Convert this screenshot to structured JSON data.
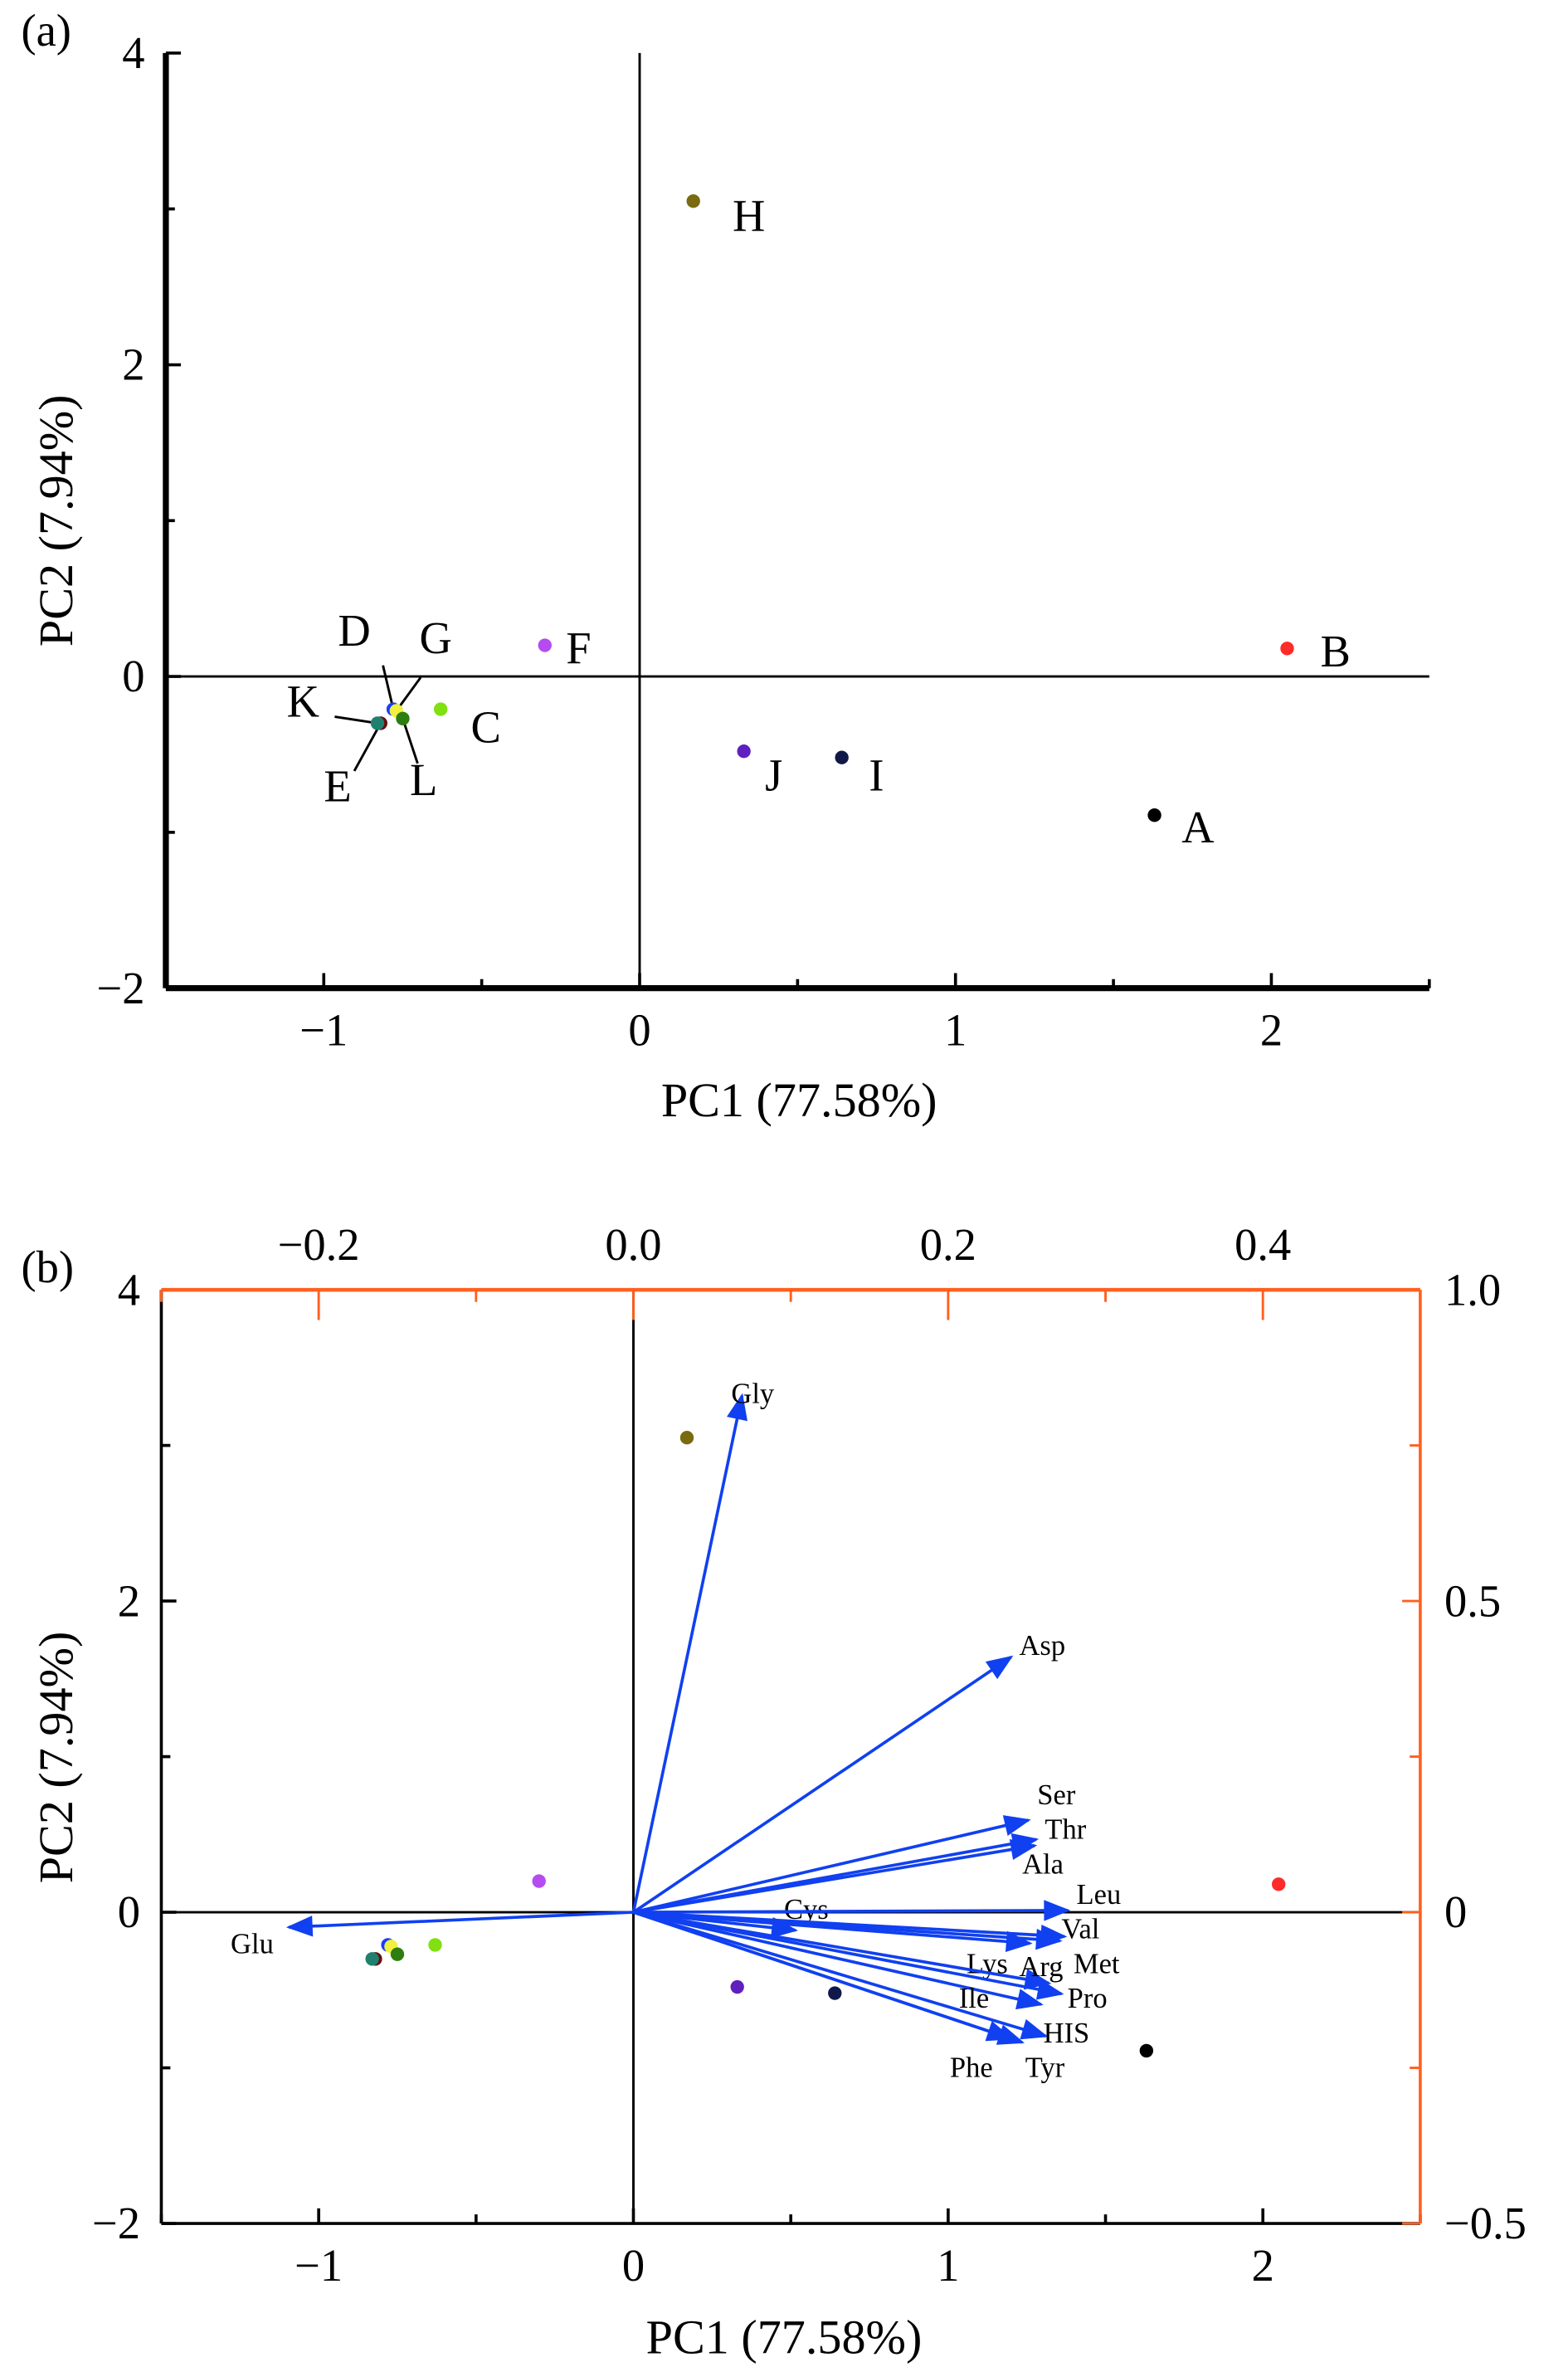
{
  "chart_data": [
    {
      "type": "scatter",
      "panel_label": "(a)",
      "xlabel": "PC1 (77.58%)",
      "ylabel": "PC2 (7.94%)",
      "xlim": [
        -1.5,
        2.5
      ],
      "ylim": [
        -2,
        4
      ],
      "xticks": [
        "-1",
        "0",
        "1",
        "2"
      ],
      "xtick_values": [
        -1,
        0,
        1,
        2
      ],
      "yticks": [
        "-2",
        "0",
        "2",
        "4"
      ],
      "ytick_values": [
        -2,
        0,
        2,
        4
      ],
      "grid": false,
      "points": [
        {
          "label": "A",
          "x": 1.63,
          "y": -0.89,
          "color": "#000000"
        },
        {
          "label": "B",
          "x": 2.05,
          "y": 0.18,
          "color": "#ff2a2a"
        },
        {
          "label": "C",
          "x": -0.63,
          "y": -0.21,
          "color": "#80e010"
        },
        {
          "label": "D",
          "x": -0.78,
          "y": -0.21,
          "color": "#1a3cff"
        },
        {
          "label": "E",
          "x": -0.82,
          "y": -0.3,
          "color": "#6b0d0d"
        },
        {
          "label": "F",
          "x": -0.3,
          "y": 0.2,
          "color": "#b44cf0"
        },
        {
          "label": "G",
          "x": -0.77,
          "y": -0.22,
          "color": "#f0f040"
        },
        {
          "label": "H",
          "x": 0.17,
          "y": 3.05,
          "color": "#7a6a10"
        },
        {
          "label": "I",
          "x": 0.64,
          "y": -0.52,
          "color": "#10184a"
        },
        {
          "label": "J",
          "x": 0.33,
          "y": -0.48,
          "color": "#6020c0"
        },
        {
          "label": "K",
          "x": -0.83,
          "y": -0.3,
          "color": "#208070"
        },
        {
          "label": "L",
          "x": -0.75,
          "y": -0.27,
          "color": "#2e7d10"
        }
      ]
    },
    {
      "type": "biplot",
      "panel_label": "(b)",
      "xlabel": "PC1 (77.58%)",
      "ylabel": "PC2 (7.94%)",
      "xlim": [
        -1.5,
        2.5
      ],
      "ylim": [
        -2,
        4
      ],
      "xticks": [
        "-1",
        "0",
        "1",
        "2"
      ],
      "xtick_values": [
        -1,
        0,
        1,
        2
      ],
      "yticks": [
        "-2",
        "0",
        "2",
        "4"
      ],
      "ytick_values": [
        -2,
        0,
        2,
        4
      ],
      "top_xlim": [
        -0.3,
        0.5
      ],
      "top_xticks": [
        "-0.2",
        "0.0",
        "0.2",
        "0.4"
      ],
      "top_xtick_values": [
        -0.2,
        0.0,
        0.2,
        0.4
      ],
      "right_ylim": [
        -0.5,
        1.0
      ],
      "right_yticks": [
        "-0.5",
        "0",
        "0.5",
        "1.0"
      ],
      "right_ytick_values": [
        -0.5,
        0,
        0.5,
        1.0
      ],
      "secondary_axis_color": "#ff6020",
      "arrow_color": "#1040f0",
      "grid": false,
      "loadings": [
        {
          "label": "Gly",
          "x": 0.069,
          "y": 0.83
        },
        {
          "label": "Asp",
          "x": 0.24,
          "y": 0.41
        },
        {
          "label": "Ser",
          "x": 0.251,
          "y": 0.148
        },
        {
          "label": "Thr",
          "x": 0.256,
          "y": 0.117
        },
        {
          "label": "Ala",
          "x": 0.255,
          "y": 0.107
        },
        {
          "label": "Cys",
          "x": 0.103,
          "y": -0.029
        },
        {
          "label": "Leu",
          "x": 0.276,
          "y": 0.003
        },
        {
          "label": "Val",
          "x": 0.274,
          "y": -0.039
        },
        {
          "label": "Met",
          "x": 0.271,
          "y": -0.046
        },
        {
          "label": "Lys",
          "x": 0.252,
          "y": -0.05
        },
        {
          "label": "Arg",
          "x": 0.264,
          "y": -0.114
        },
        {
          "label": "Pro",
          "x": 0.272,
          "y": -0.131
        },
        {
          "label": "Ile",
          "x": 0.259,
          "y": -0.148
        },
        {
          "label": "HIS",
          "x": 0.262,
          "y": -0.199
        },
        {
          "label": "Tyr",
          "x": 0.247,
          "y": -0.209
        },
        {
          "label": "Phe",
          "x": 0.24,
          "y": -0.203
        },
        {
          "label": "Glu",
          "x": -0.219,
          "y": -0.024
        }
      ]
    }
  ]
}
